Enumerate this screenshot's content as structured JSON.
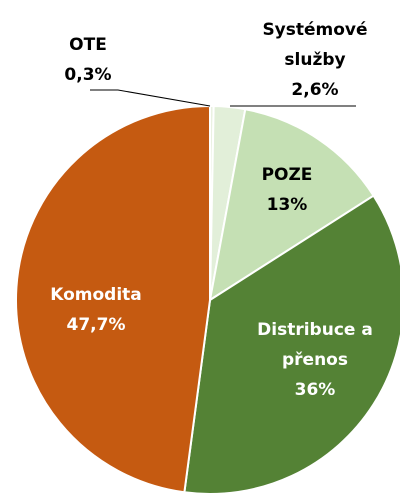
{
  "chart_data": {
    "type": "pie",
    "categories": [
      "OTE",
      "Systémové služby",
      "POZE",
      "Distribuce a přenos",
      "Komodita"
    ],
    "values": [
      0.3,
      2.6,
      13,
      36,
      47.7
    ],
    "value_labels": [
      "0,3%",
      "2,6%",
      "13%",
      "36%",
      "47,7%"
    ],
    "colors": [
      "#eaf2e2",
      "#e2efd9",
      "#c5e0b4",
      "#548235",
      "#c55a11"
    ]
  }
}
